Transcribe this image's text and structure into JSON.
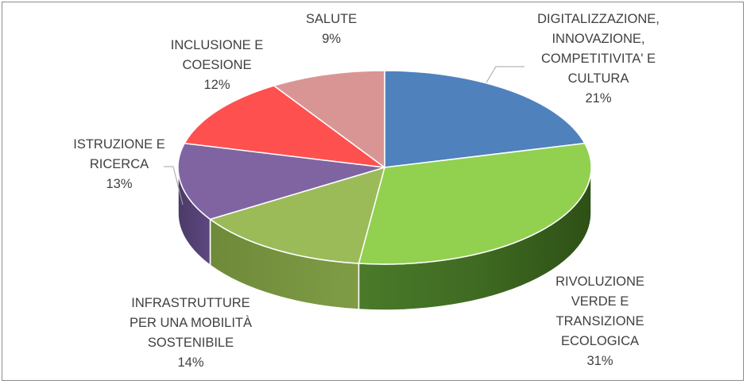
{
  "chart_data": {
    "type": "pie",
    "three_d": true,
    "legend": "none",
    "categories": [
      "DIGITALIZZAZIONE, INNOVAZIONE, COMPETITIVITA' E CULTURA",
      "RIVOLUZIONE VERDE E TRANSIZIONE ECOLOGICA",
      "INFRASTRUTTURE PER UNA MOBILITÀ SOSTENIBILE",
      "ISTRUZIONE E RICERCA",
      "INCLUSIONE E COESIONE",
      "SALUTE"
    ],
    "values": [
      21,
      31,
      14,
      13,
      12,
      9
    ],
    "unit": "%",
    "colors": [
      "#4f81bd",
      "#92d050",
      "#9bbb59",
      "#8064a2",
      "#ff5050",
      "#d99594"
    ],
    "labels": [
      {
        "lines": [
          "DIGITALIZZAZIONE,",
          "INNOVAZIONE,",
          "COMPETITIVITA' E",
          "CULTURA"
        ],
        "pct": "21%"
      },
      {
        "lines": [
          "RIVOLUZIONE",
          "VERDE E",
          "TRANSIZIONE",
          "ECOLOGICA"
        ],
        "pct": "31%"
      },
      {
        "lines": [
          "INFRASTRUTTURE",
          "PER UNA MOBILITÀ",
          "SOSTENIBILE"
        ],
        "pct": "14%"
      },
      {
        "lines": [
          "ISTRUZIONE E",
          "RICERCA"
        ],
        "pct": "13%"
      },
      {
        "lines": [
          "INCLUSIONE E",
          "COESIONE"
        ],
        "pct": "12%"
      },
      {
        "lines": [
          "SALUTE"
        ],
        "pct": "9%"
      }
    ]
  }
}
